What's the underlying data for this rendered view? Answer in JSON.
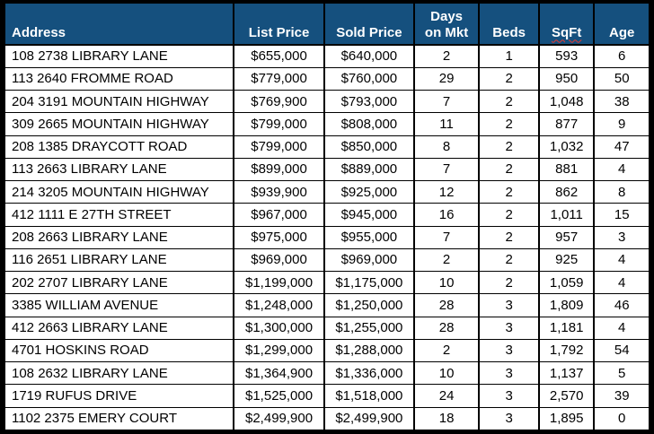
{
  "theme": {
    "header_bg": "#15507E",
    "header_text": "#FFFFFF",
    "row_bg": "#FFFFFF",
    "row_text": "#000000",
    "grid_color": "#000000",
    "spellcheck_squiggle_color": "#E8392E"
  },
  "table": {
    "columns": [
      {
        "id": "address",
        "label": "Address",
        "align": "left"
      },
      {
        "id": "list-price",
        "label": "List Price",
        "align": "center"
      },
      {
        "id": "sold-price",
        "label": "Sold Price",
        "align": "center"
      },
      {
        "id": "days-on-mkt",
        "label": "Days on Mkt",
        "align": "center"
      },
      {
        "id": "beds",
        "label": "Beds",
        "align": "center"
      },
      {
        "id": "sqft",
        "label": "SqFt",
        "align": "center",
        "spellcheck_underline": true
      },
      {
        "id": "age",
        "label": "Age",
        "align": "center"
      }
    ],
    "rows": [
      [
        "108 2738 LIBRARY LANE",
        "$655,000",
        "$640,000",
        "2",
        "1",
        "593",
        "6"
      ],
      [
        "113 2640 FROMME ROAD",
        "$779,000",
        "$760,000",
        "29",
        "2",
        "950",
        "50"
      ],
      [
        "204 3191 MOUNTAIN HIGHWAY",
        "$769,900",
        "$793,000",
        "7",
        "2",
        "1,048",
        "38"
      ],
      [
        "309 2665 MOUNTAIN HIGHWAY",
        "$799,000",
        "$808,000",
        "11",
        "2",
        "877",
        "9"
      ],
      [
        "208 1385 DRAYCOTT ROAD",
        "$799,000",
        "$850,000",
        "8",
        "2",
        "1,032",
        "47"
      ],
      [
        "113 2663 LIBRARY LANE",
        "$899,000",
        "$889,000",
        "7",
        "2",
        "881",
        "4"
      ],
      [
        "214 3205 MOUNTAIN HIGHWAY",
        "$939,900",
        "$925,000",
        "12",
        "2",
        "862",
        "8"
      ],
      [
        "412 1111 E 27TH STREET",
        "$967,000",
        "$945,000",
        "16",
        "2",
        "1,011",
        "15"
      ],
      [
        "208 2663 LIBRARY LANE",
        "$975,000",
        "$955,000",
        "7",
        "2",
        "957",
        "3"
      ],
      [
        "116 2651 LIBRARY LANE",
        "$969,000",
        "$969,000",
        "2",
        "2",
        "925",
        "4"
      ],
      [
        "202 2707 LIBRARY LANE",
        "$1,199,000",
        "$1,175,000",
        "10",
        "2",
        "1,059",
        "4"
      ],
      [
        "3385 WILLIAM AVENUE",
        "$1,248,000",
        "$1,250,000",
        "28",
        "3",
        "1,809",
        "46"
      ],
      [
        "412 2663 LIBRARY LANE",
        "$1,300,000",
        "$1,255,000",
        "28",
        "3",
        "1,181",
        "4"
      ],
      [
        "4701 HOSKINS ROAD",
        "$1,299,000",
        "$1,288,000",
        "2",
        "3",
        "1,792",
        "54"
      ],
      [
        "108 2632 LIBRARY LANE",
        "$1,364,900",
        "$1,336,000",
        "10",
        "3",
        "1,137",
        "5"
      ],
      [
        "1719 RUFUS DRIVE",
        "$1,525,000",
        "$1,518,000",
        "24",
        "3",
        "2,570",
        "39"
      ],
      [
        "1102 2375 EMERY COURT",
        "$2,499,900",
        "$2,499,900",
        "18",
        "3",
        "1,895",
        "0"
      ]
    ]
  }
}
